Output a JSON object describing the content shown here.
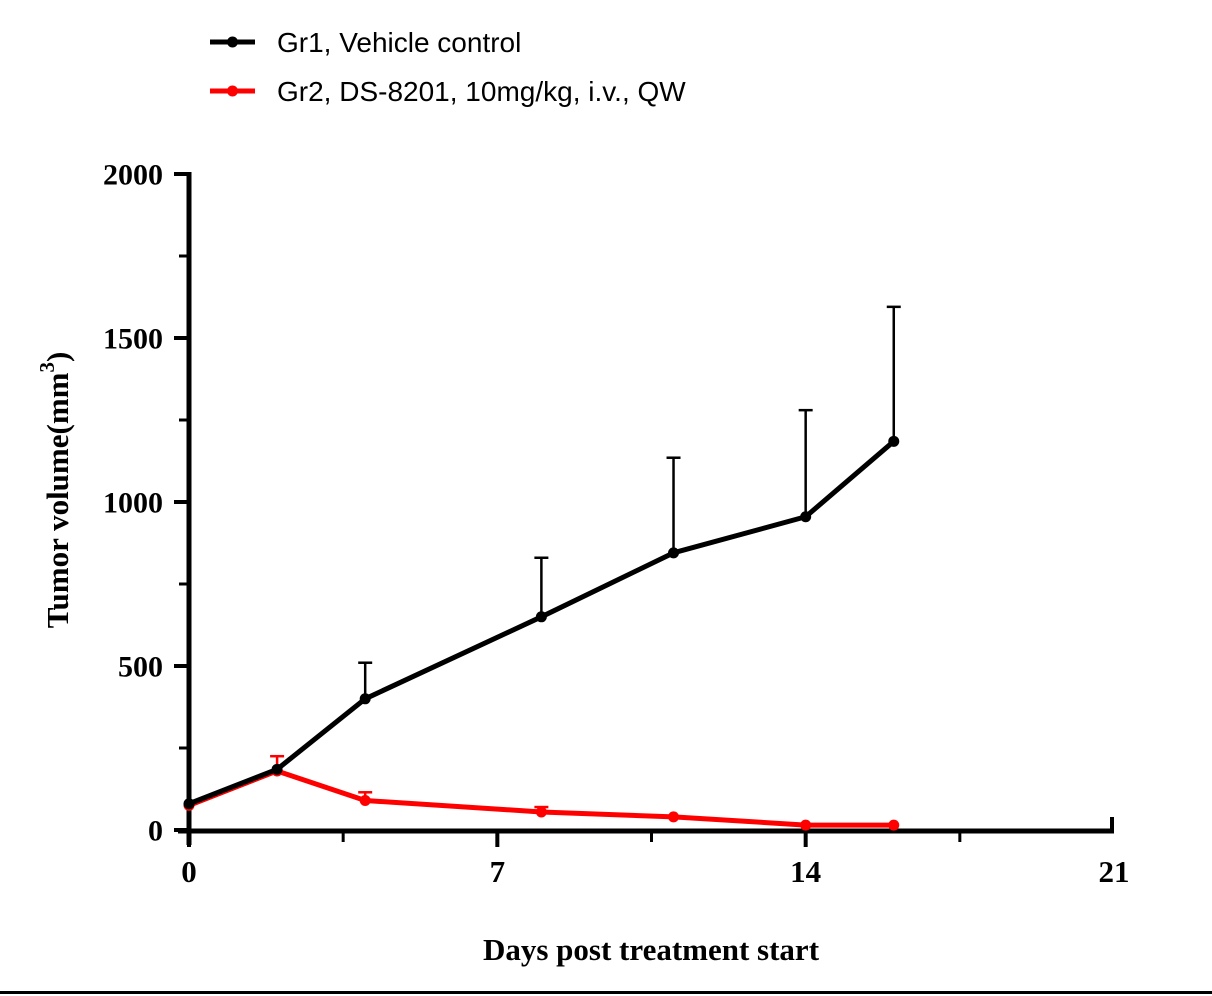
{
  "figure": {
    "background": "#ffffff",
    "bottom_rule_color": "#000000"
  },
  "legend": {
    "position": "top-left",
    "items": [
      {
        "label": "Gr1, Vehicle control",
        "color": "#000000"
      },
      {
        "label": "Gr2, DS-8201, 10mg/kg, i.v., QW",
        "color": "#ff0000"
      }
    ]
  },
  "chart_data": {
    "type": "line",
    "title": "",
    "xlabel": "Days post treatment start",
    "ylabel": "Tumor volume(mm3)",
    "ylabel_parts": {
      "main": "Tumor volume(mm",
      "sup": "3",
      "end": ")"
    },
    "x": [
      0,
      2,
      4,
      8,
      11,
      14,
      16
    ],
    "series": [
      {
        "name": "Gr1, Vehicle control",
        "color": "#000000",
        "values": [
          80,
          185,
          400,
          650,
          845,
          955,
          1185
        ],
        "err_plus": [
          0,
          0,
          110,
          180,
          290,
          325,
          410
        ]
      },
      {
        "name": "Gr2, DS-8201, 10mg/kg, i.v., QW",
        "color": "#ff0000",
        "values": [
          75,
          180,
          90,
          55,
          40,
          15,
          15
        ],
        "err_plus": [
          0,
          45,
          25,
          15,
          0,
          0,
          0
        ]
      }
    ],
    "xlim": [
      0,
      21
    ],
    "ylim": [
      0,
      2000
    ],
    "xticks": [
      0,
      7,
      14,
      21
    ],
    "xminor_ticks": [
      3.5,
      10.5,
      17.5
    ],
    "yticks": [
      0,
      500,
      1000,
      1500,
      2000
    ],
    "yminor_ticks": [
      250,
      750,
      1250,
      1750
    ],
    "grid": false,
    "legend_position": "top-left",
    "error_bars": "upper-only vertical bars with caps",
    "marker": "filled circle"
  }
}
